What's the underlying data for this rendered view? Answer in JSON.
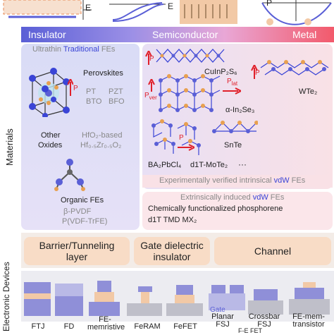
{
  "band": {
    "insulator": "Insulator",
    "semiconductor": "Semiconductor",
    "metal": "Metal"
  },
  "side_labels": {
    "materials": "Materials",
    "devices": "Electronic Devices"
  },
  "axis_symbols": {
    "e1": "E",
    "e2": "E",
    "p": "P"
  },
  "traditional": {
    "header_pre": "Ultrathin ",
    "header_em": "Traditional",
    "header_post": " FEs",
    "perovskites": "Perovskites",
    "pt": "PT",
    "pzt": "PZT",
    "bto": "BTO",
    "bfo": "BFO",
    "other": "Other",
    "oxides": "Oxides",
    "hfo2": "HfO₂-based",
    "hzo": "Hf₀.₅Zr₀.₅O₂",
    "organic": "Organic FEs",
    "pvdf": "β-PVDF",
    "pvdftrfe": "P(VDF-TrFE)",
    "p_label": "P"
  },
  "intrinsic": {
    "cuinp2s6": "CuInP₂S₆",
    "wte2": "WTe₂",
    "in2se3": "α-In₂Se₃",
    "snte": "SnTe",
    "ba2pbcl4": "BA₂PbCl₄",
    "mote2": "d1T-MoTe₂",
    "ellipsis": "···",
    "pver": "P",
    "pver_sub": "ver",
    "plat": "P",
    "plat_sub": "lat",
    "p": "P",
    "footer_pre": "Experimentally verified intrinsical ",
    "footer_em": "vdW",
    "footer_post": " FEs"
  },
  "extrinsic": {
    "header_pre": "Extrinsically induced ",
    "header_em": "vdW",
    "header_post": " FEs",
    "line1": "Chemically functionalized phosphorene",
    "line2": "d1T TMD MX₂"
  },
  "device_categories": [
    {
      "label1": "Barrier/Tunneling",
      "label2": "layer"
    },
    {
      "label1": "Gate dielectric",
      "label2": "insulator"
    },
    {
      "label1": "Channel",
      "label2": ""
    }
  ],
  "devices": [
    {
      "label": "FTJ"
    },
    {
      "label": "FD"
    },
    {
      "label": "FE-memristive"
    },
    {
      "label": "FeRAM"
    },
    {
      "label": "FeFET"
    },
    {
      "label": "Planar FSJ"
    },
    {
      "label": "Crossbar FSJ"
    },
    {
      "label": "FE-mem-transistor"
    }
  ],
  "device_extras": {
    "gate": "Gate",
    "fet": "F-E FET"
  },
  "colors": {
    "insulator": "#5a5fd6",
    "metal": "#f25a6b",
    "accent_blue": "#3a44d6",
    "p_red": "#e0202a"
  }
}
